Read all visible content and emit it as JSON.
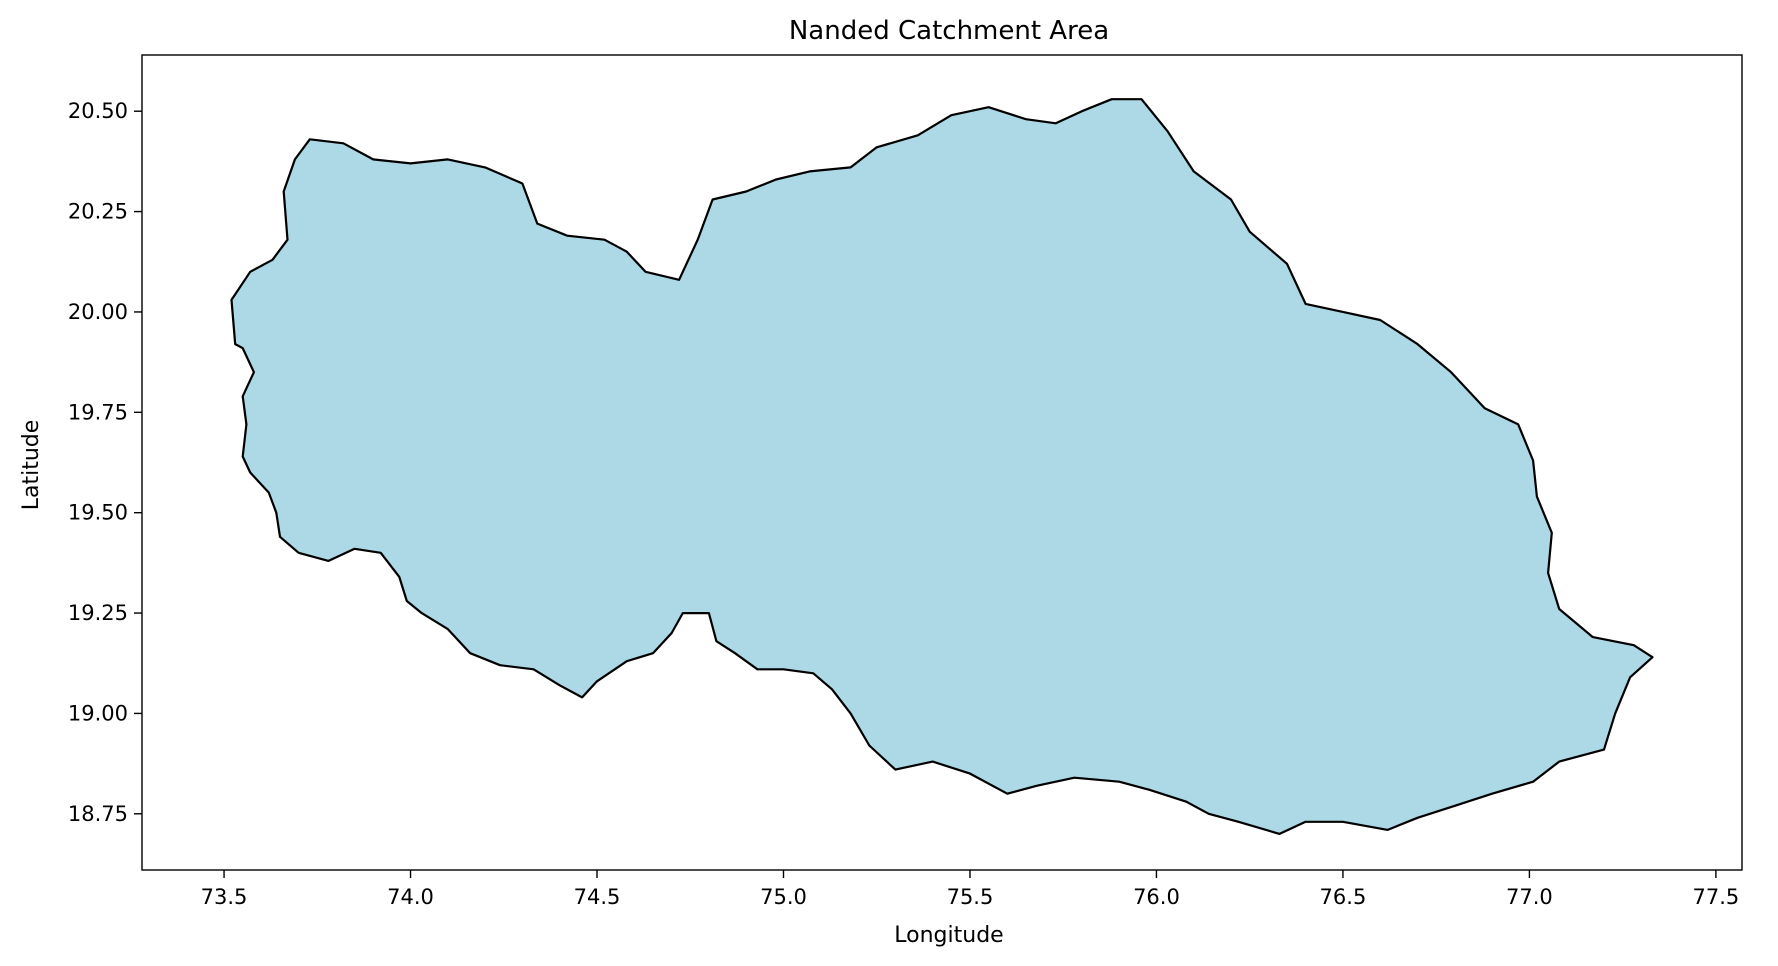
{
  "chart_data": {
    "type": "map",
    "title": "Nanded Catchment Area",
    "xlabel": "Longitude",
    "ylabel": "Latitude",
    "xlim": [
      73.28,
      77.57
    ],
    "ylim": [
      18.61,
      20.64
    ],
    "x_ticks": [
      73.5,
      74.0,
      74.5,
      75.0,
      75.5,
      76.0,
      76.5,
      77.0,
      77.5
    ],
    "x_tick_labels": [
      "73.5",
      "74.0",
      "74.5",
      "75.0",
      "75.5",
      "76.0",
      "76.5",
      "77.0",
      "77.5"
    ],
    "y_ticks": [
      18.75,
      19.0,
      19.25,
      19.5,
      19.75,
      20.0,
      20.25,
      20.5
    ],
    "y_tick_labels": [
      "18.75",
      "19.00",
      "19.25",
      "19.50",
      "19.75",
      "20.00",
      "20.25",
      "20.50"
    ],
    "grid": false,
    "legend": false,
    "fill_color": "#add8e6",
    "edge_color": "#000000",
    "boundary": [
      [
        73.53,
        19.92
      ],
      [
        73.52,
        20.03
      ],
      [
        73.57,
        20.1
      ],
      [
        73.63,
        20.13
      ],
      [
        73.67,
        20.18
      ],
      [
        73.66,
        20.3
      ],
      [
        73.69,
        20.38
      ],
      [
        73.73,
        20.43
      ],
      [
        73.82,
        20.42
      ],
      [
        73.9,
        20.38
      ],
      [
        74.0,
        20.37
      ],
      [
        74.1,
        20.38
      ],
      [
        74.2,
        20.36
      ],
      [
        74.3,
        20.32
      ],
      [
        74.34,
        20.22
      ],
      [
        74.42,
        20.19
      ],
      [
        74.52,
        20.18
      ],
      [
        74.58,
        20.15
      ],
      [
        74.63,
        20.1
      ],
      [
        74.72,
        20.08
      ],
      [
        74.77,
        20.18
      ],
      [
        74.81,
        20.28
      ],
      [
        74.9,
        20.3
      ],
      [
        74.98,
        20.33
      ],
      [
        75.07,
        20.35
      ],
      [
        75.18,
        20.36
      ],
      [
        75.25,
        20.41
      ],
      [
        75.36,
        20.44
      ],
      [
        75.45,
        20.49
      ],
      [
        75.55,
        20.51
      ],
      [
        75.65,
        20.48
      ],
      [
        75.73,
        20.47
      ],
      [
        75.8,
        20.5
      ],
      [
        75.88,
        20.53
      ],
      [
        75.96,
        20.53
      ],
      [
        76.03,
        20.45
      ],
      [
        76.1,
        20.35
      ],
      [
        76.2,
        20.28
      ],
      [
        76.25,
        20.2
      ],
      [
        76.35,
        20.12
      ],
      [
        76.4,
        20.02
      ],
      [
        76.5,
        20.0
      ],
      [
        76.6,
        19.98
      ],
      [
        76.7,
        19.92
      ],
      [
        76.79,
        19.85
      ],
      [
        76.88,
        19.76
      ],
      [
        76.97,
        19.72
      ],
      [
        77.01,
        19.63
      ],
      [
        77.02,
        19.54
      ],
      [
        77.06,
        19.45
      ],
      [
        77.05,
        19.35
      ],
      [
        77.08,
        19.26
      ],
      [
        77.17,
        19.19
      ],
      [
        77.28,
        19.17
      ],
      [
        77.33,
        19.14
      ],
      [
        77.27,
        19.09
      ],
      [
        77.23,
        19.0
      ],
      [
        77.2,
        18.91
      ],
      [
        77.08,
        18.88
      ],
      [
        77.01,
        18.83
      ],
      [
        76.9,
        18.8
      ],
      [
        76.8,
        18.77
      ],
      [
        76.7,
        18.74
      ],
      [
        76.62,
        18.71
      ],
      [
        76.5,
        18.73
      ],
      [
        76.4,
        18.73
      ],
      [
        76.33,
        18.7
      ],
      [
        76.22,
        18.73
      ],
      [
        76.14,
        18.75
      ],
      [
        76.08,
        18.78
      ],
      [
        75.98,
        18.81
      ],
      [
        75.9,
        18.83
      ],
      [
        75.78,
        18.84
      ],
      [
        75.68,
        18.82
      ],
      [
        75.6,
        18.8
      ],
      [
        75.5,
        18.85
      ],
      [
        75.4,
        18.88
      ],
      [
        75.3,
        18.86
      ],
      [
        75.23,
        18.92
      ],
      [
        75.18,
        19.0
      ],
      [
        75.13,
        19.06
      ],
      [
        75.08,
        19.1
      ],
      [
        75.0,
        19.11
      ],
      [
        74.93,
        19.11
      ],
      [
        74.87,
        19.15
      ],
      [
        74.82,
        19.18
      ],
      [
        74.8,
        19.25
      ],
      [
        74.73,
        19.25
      ],
      [
        74.7,
        19.2
      ],
      [
        74.65,
        19.15
      ],
      [
        74.58,
        19.13
      ],
      [
        74.5,
        19.08
      ],
      [
        74.46,
        19.04
      ],
      [
        74.4,
        19.07
      ],
      [
        74.33,
        19.11
      ],
      [
        74.24,
        19.12
      ],
      [
        74.16,
        19.15
      ],
      [
        74.1,
        19.21
      ],
      [
        74.03,
        19.25
      ],
      [
        73.99,
        19.28
      ],
      [
        73.97,
        19.34
      ],
      [
        73.92,
        19.4
      ],
      [
        73.85,
        19.41
      ],
      [
        73.78,
        19.38
      ],
      [
        73.7,
        19.4
      ],
      [
        73.65,
        19.44
      ],
      [
        73.64,
        19.5
      ],
      [
        73.62,
        19.55
      ],
      [
        73.57,
        19.6
      ],
      [
        73.55,
        19.64
      ],
      [
        73.56,
        19.72
      ],
      [
        73.55,
        19.79
      ],
      [
        73.58,
        19.85
      ],
      [
        73.55,
        19.91
      ]
    ]
  }
}
